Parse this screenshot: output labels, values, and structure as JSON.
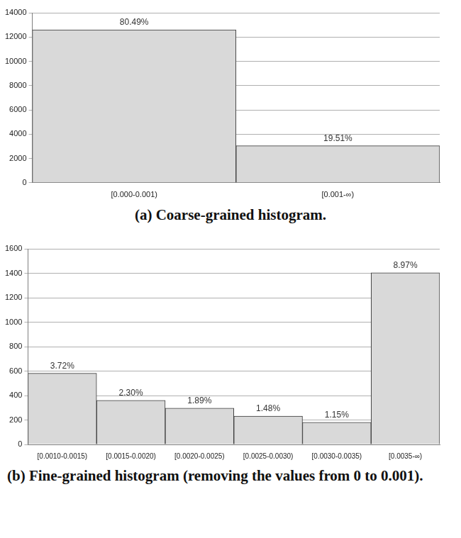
{
  "chart_data": [
    {
      "type": "bar",
      "title": "(a) Coarse-grained histogram.",
      "categories": [
        "[0.000-0.001)",
        "[0.001-∞)"
      ],
      "values": [
        12600,
        3050
      ],
      "bar_labels": [
        "80.49%",
        "19.51%"
      ],
      "color": "#d9d9d9",
      "ylim": [
        0,
        14000
      ],
      "yticks": [
        0,
        2000,
        4000,
        6000,
        8000,
        10000,
        12000,
        14000
      ],
      "grid": true
    },
    {
      "type": "bar",
      "title": "(b) Fine-grained histogram (removing the values from 0 to 0.001).",
      "categories": [
        "[0.0010-0.0015)",
        "[0.0015-0.0020)",
        "[0.0020-0.0025)",
        "[0.0025-0.0030)",
        "[0.0030-0.0035)",
        "[0.0035-∞)"
      ],
      "values": [
        582,
        360,
        296,
        232,
        180,
        1404
      ],
      "bar_labels": [
        "3.72%",
        "2.30%",
        "1.89%",
        "1.48%",
        "1.15%",
        "8.97%"
      ],
      "color": "#d9d9d9",
      "ylim": [
        0,
        1600
      ],
      "yticks": [
        0,
        200,
        400,
        600,
        800,
        1000,
        1200,
        1400,
        1600
      ],
      "grid": true
    }
  ]
}
